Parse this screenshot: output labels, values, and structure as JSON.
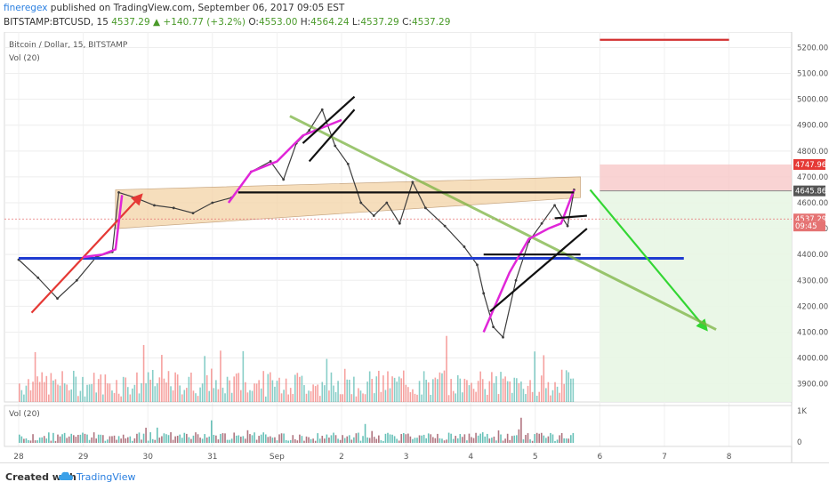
{
  "header": {
    "author": "fineregex",
    "published": "published on TradingView.com, September 06, 2017 09:05 EST",
    "symbol": "BITSTAMP:BTCUSD, 15",
    "last": "4537.29",
    "change": "▲ +140.77 (+3.2%)",
    "o_label": "O:",
    "o": "4553.00",
    "h_label": "H:",
    "h": "4564.24",
    "l_label": "L:",
    "l": "4537.29",
    "c_label": "C:",
    "c": "4537.29"
  },
  "pane": {
    "title": "Bitcoin / Dollar, 15, BITSTAMP",
    "vol": "Vol (20)"
  },
  "footer": {
    "created": "Created with",
    "brand": "TradingView"
  },
  "chart_data": {
    "type": "line",
    "title": "Bitcoin / Dollar, 15, BITSTAMP",
    "x_ticks": [
      "28",
      "29",
      "30",
      "31",
      "Sep",
      "2",
      "3",
      "4",
      "5",
      "6",
      "7",
      "8"
    ],
    "ylim": [
      3830,
      5260
    ],
    "y_ticks": [
      3900,
      4000,
      4100,
      4200,
      4300,
      4400,
      4500,
      4600,
      4700,
      4800,
      4900,
      5000,
      5100,
      5200
    ],
    "price_labels": [
      {
        "text": "4747.96",
        "value": 4747.96,
        "color": "#e53935"
      },
      {
        "text": "4645.86",
        "value": 4645.86,
        "color": "#555555"
      },
      {
        "text": "4537.29",
        "value": 4537.29,
        "color": "#e57373"
      },
      {
        "text": "09:45",
        "value": 4510,
        "color": "#e57373"
      }
    ],
    "series": [
      {
        "type": "line",
        "x": [
          28.0,
          28.3,
          28.6,
          28.9,
          29.2,
          29.45,
          29.55,
          29.8,
          30.1,
          30.4,
          30.7,
          31.0,
          31.3,
          31.6,
          31.9,
          32.1,
          32.3,
          32.5,
          32.7,
          32.9,
          33.1,
          33.3,
          33.5,
          33.7,
          33.9,
          34.1,
          34.3,
          34.6,
          34.9,
          35.1,
          35.2,
          35.35,
          35.5,
          35.7,
          35.9,
          36.1,
          36.3,
          36.5,
          36.6
        ],
        "values": [
          4380,
          4310,
          4230,
          4300,
          4390,
          4410,
          4640,
          4620,
          4590,
          4580,
          4560,
          4600,
          4620,
          4720,
          4760,
          4690,
          4830,
          4880,
          4960,
          4820,
          4750,
          4600,
          4550,
          4600,
          4520,
          4680,
          4580,
          4510,
          4430,
          4360,
          4250,
          4120,
          4080,
          4300,
          4450,
          4520,
          4590,
          4510,
          4650
        ]
      }
    ],
    "volume": {
      "pane": "Vol (20)",
      "y_ticks": [
        "1K",
        "0"
      ]
    },
    "annotations": [
      {
        "name": "blue-support-line",
        "color": "#1f3bd1",
        "from": [
          28.0,
          4385
        ],
        "to": [
          38.3,
          4385
        ]
      },
      {
        "name": "red-target-line",
        "color": "#d32f2f",
        "from": [
          37.0,
          5230
        ],
        "to": [
          39.0,
          5230
        ]
      },
      {
        "name": "green-projection-arrow",
        "color": "#33d633",
        "from": [
          36.85,
          4650
        ],
        "to": [
          38.65,
          4110
        ]
      },
      {
        "name": "red-trend-arrow",
        "color": "#e53935",
        "from": [
          28.2,
          4175
        ],
        "to": [
          29.9,
          4630
        ]
      },
      {
        "name": "green-trendline",
        "color": "#7cb342",
        "from": [
          32.2,
          4935
        ],
        "to": [
          38.8,
          4110
        ]
      }
    ]
  }
}
